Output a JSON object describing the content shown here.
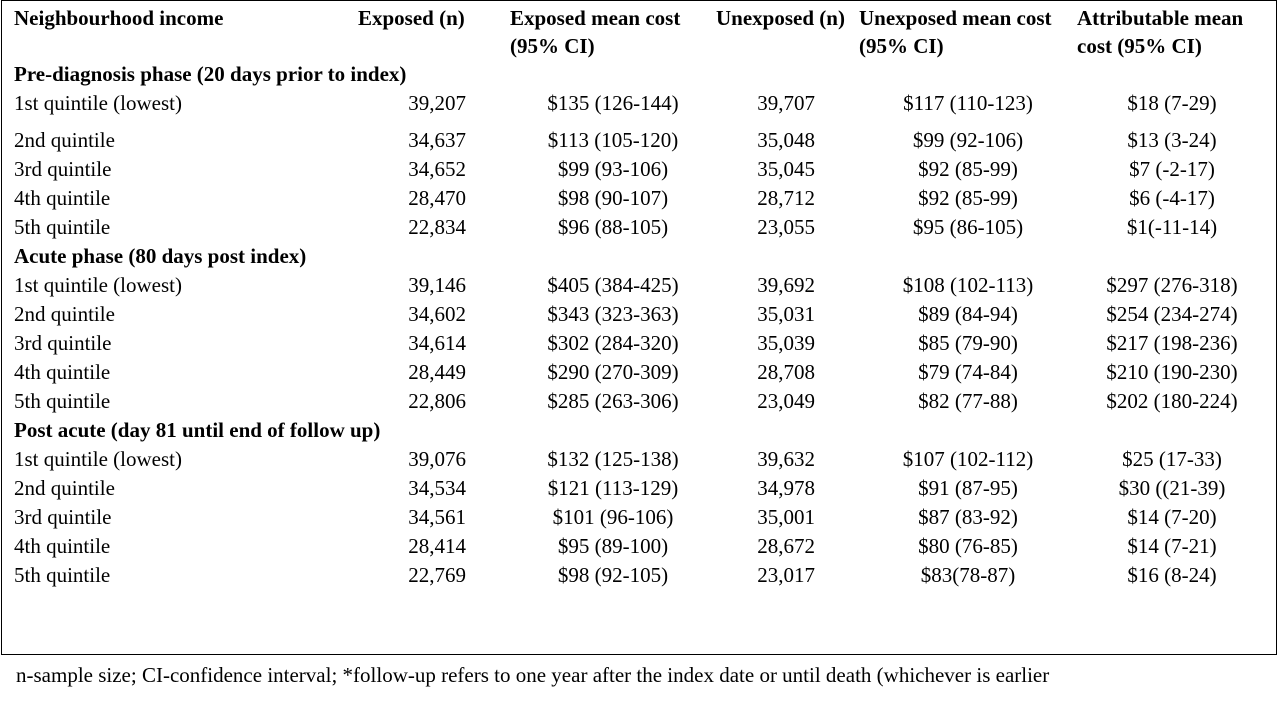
{
  "headers": [
    "Neighbourhood income",
    "Exposed (n)",
    "Exposed mean cost (95% CI)",
    "Unexposed (n)",
    "Unexposed mean cost (95% CI)",
    "Attributable mean cost (95% CI)"
  ],
  "sections": [
    {
      "title": "Pre-diagnosis phase (20 days prior to index)",
      "rows": [
        [
          "1st quintile (lowest)",
          "39,207",
          "$135 (126-144)",
          "39,707",
          "$117 (110-123)",
          "$18 (7-29)"
        ],
        [
          "2nd quintile",
          "34,637",
          "$113 (105-120)",
          "35,048",
          "$99 (92-106)",
          "$13 (3-24)"
        ],
        [
          "3rd quintile",
          "34,652",
          "$99 (93-106)",
          "35,045",
          "$92 (85-99)",
          "$7 (-2-17)"
        ],
        [
          "4th quintile",
          "28,470",
          "$98 (90-107)",
          "28,712",
          "$92 (85-99)",
          "$6 (-4-17)"
        ],
        [
          "5th quintile",
          "22,834",
          "$96 (88-105)",
          "23,055",
          "$95 (86-105)",
          "$1(-11-14)"
        ]
      ]
    },
    {
      "title": "Acute phase (80 days post index)",
      "rows": [
        [
          "1st quintile (lowest)",
          "39,146",
          "$405 (384-425)",
          "39,692",
          "$108 (102-113)",
          "$297 (276-318)"
        ],
        [
          "2nd quintile",
          "34,602",
          "$343 (323-363)",
          "35,031",
          "$89 (84-94)",
          "$254 (234-274)"
        ],
        [
          "3rd quintile",
          "34,614",
          "$302 (284-320)",
          "35,039",
          "$85 (79-90)",
          "$217 (198-236)"
        ],
        [
          "4th quintile",
          "28,449",
          "$290 (270-309)",
          "28,708",
          "$79 (74-84)",
          "$210 (190-230)"
        ],
        [
          "5th quintile",
          "22,806",
          "$285 (263-306)",
          "23,049",
          "$82 (77-88)",
          "$202 (180-224)"
        ]
      ]
    },
    {
      "title": "Post acute (day 81 until end of follow up)",
      "rows": [
        [
          "1st quintile (lowest)",
          "39,076",
          "$132 (125-138)",
          "39,632",
          "$107 (102-112)",
          "$25 (17-33)"
        ],
        [
          "2nd quintile",
          "34,534",
          "$121 (113-129)",
          "34,978",
          "$91 (87-95)",
          "$30 ((21-39)"
        ],
        [
          "3rd quintile",
          "34,561",
          "$101 (96-106)",
          "35,001",
          "$87 (83-92)",
          "$14 (7-20)"
        ],
        [
          "4th quintile",
          "28,414",
          "$95 (89-100)",
          "28,672",
          "$80 (76-85)",
          "$14 (7-21)"
        ],
        [
          "5th quintile",
          "22,769",
          "$98 (92-105)",
          "23,017",
          "$83(78-87)",
          "$16 (8-24)"
        ]
      ]
    }
  ],
  "footnote": "n-sample size; CI-confidence interval; *follow-up refers to one year after the index date or until death (whichever is earlier"
}
